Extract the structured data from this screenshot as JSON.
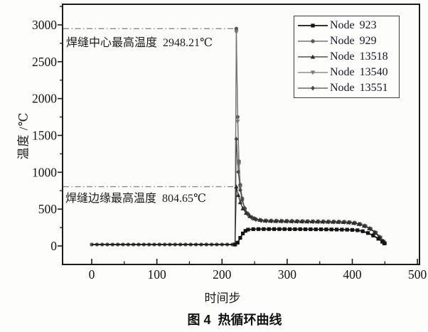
{
  "figure": {
    "caption": "图 4  热循环曲线",
    "xlabel": "时间步",
    "ylabel": "温度 /℃",
    "annotations": {
      "center": "焊缝中心最高温度  2948.21℃",
      "edge": "焊缝边缘最高温度  804.65℃"
    }
  },
  "chart_data": {
    "type": "line",
    "title": "图 4 热循环曲线",
    "xlabel": "时间步",
    "ylabel": "温度 /℃",
    "xlim": [
      -45,
      503
    ],
    "ylim": [
      -250,
      3280
    ],
    "x_ticks": [
      0,
      100,
      200,
      300,
      400,
      500
    ],
    "y_ticks": [
      0,
      500,
      1000,
      1500,
      2000,
      2500,
      3000
    ],
    "x_minor_step": 50,
    "y_minor_step": 250,
    "grid": false,
    "legend_position": "top-right",
    "reference_lines": [
      {
        "value": 2948.21,
        "label": "焊缝中心最高温度 2948.21℃",
        "t_end": 226
      },
      {
        "value": 804.65,
        "label": "焊缝边缘最高温度 804.65℃",
        "t_end": 226
      }
    ],
    "flat_segment": {
      "t_start": 0,
      "t_end": 216,
      "step": 8,
      "value": 20
    },
    "series": [
      {
        "name": "Node 923",
        "marker": "square",
        "color": "#141414",
        "width": 1.8,
        "peak": 230,
        "flat_markers": false,
        "points": [
          [
            220,
            20
          ],
          [
            224,
            45
          ],
          [
            228,
            110
          ],
          [
            232,
            170
          ],
          [
            236,
            205
          ],
          [
            240,
            222
          ],
          [
            248,
            228
          ],
          [
            256,
            229
          ],
          [
            264,
            229
          ],
          [
            272,
            229
          ],
          [
            280,
            229
          ],
          [
            288,
            229
          ],
          [
            296,
            229
          ],
          [
            304,
            228
          ],
          [
            312,
            228
          ],
          [
            320,
            228
          ],
          [
            328,
            227
          ],
          [
            336,
            227
          ],
          [
            344,
            226
          ],
          [
            352,
            226
          ],
          [
            360,
            225
          ],
          [
            368,
            224
          ],
          [
            376,
            223
          ],
          [
            384,
            222
          ],
          [
            392,
            221
          ],
          [
            400,
            218
          ],
          [
            408,
            213
          ],
          [
            416,
            200
          ],
          [
            424,
            176
          ],
          [
            432,
            142
          ],
          [
            440,
            98
          ],
          [
            446,
            58
          ],
          [
            449,
            35
          ]
        ]
      },
      {
        "name": "Node 929",
        "marker": "circle",
        "color": "#585858",
        "width": 1.3,
        "peak": 2948.21,
        "flat_markers": true,
        "points": [
          [
            220,
            20
          ],
          [
            222,
            2948.21
          ],
          [
            224,
            1750
          ],
          [
            226,
            1150
          ],
          [
            228,
            830
          ],
          [
            231,
            645
          ],
          [
            235,
            505
          ],
          [
            240,
            428
          ],
          [
            246,
            382
          ],
          [
            252,
            360
          ],
          [
            260,
            346
          ],
          [
            268,
            342
          ],
          [
            276,
            340
          ],
          [
            284,
            339
          ],
          [
            292,
            338
          ],
          [
            300,
            337
          ],
          [
            308,
            336
          ],
          [
            316,
            335
          ],
          [
            324,
            334
          ],
          [
            332,
            333
          ],
          [
            340,
            332
          ],
          [
            348,
            331
          ],
          [
            356,
            330
          ],
          [
            364,
            329
          ],
          [
            372,
            328
          ],
          [
            380,
            327
          ],
          [
            388,
            325
          ],
          [
            396,
            321
          ],
          [
            404,
            311
          ],
          [
            412,
            295
          ],
          [
            420,
            270
          ],
          [
            428,
            232
          ],
          [
            436,
            180
          ],
          [
            443,
            115
          ],
          [
            448,
            60
          ],
          [
            450,
            40
          ]
        ]
      },
      {
        "name": "Node 13518",
        "marker": "triangle-up",
        "color": "#2e2e2e",
        "width": 1.3,
        "peak": 804.65,
        "flat_markers": false,
        "points": [
          [
            220,
            20
          ],
          [
            222,
            804.65
          ],
          [
            225,
            690
          ],
          [
            228,
            592
          ],
          [
            232,
            508
          ],
          [
            237,
            448
          ],
          [
            243,
            404
          ],
          [
            250,
            374
          ],
          [
            258,
            354
          ],
          [
            266,
            344
          ],
          [
            274,
            341
          ],
          [
            282,
            339
          ],
          [
            290,
            338
          ],
          [
            298,
            337
          ],
          [
            306,
            336
          ],
          [
            314,
            335
          ],
          [
            322,
            334
          ],
          [
            330,
            333
          ],
          [
            338,
            332
          ],
          [
            346,
            331
          ],
          [
            354,
            330
          ],
          [
            362,
            329
          ],
          [
            370,
            328
          ],
          [
            378,
            326
          ],
          [
            386,
            324
          ],
          [
            394,
            320
          ],
          [
            402,
            312
          ],
          [
            410,
            298
          ],
          [
            418,
            274
          ],
          [
            426,
            238
          ],
          [
            434,
            188
          ],
          [
            441,
            125
          ],
          [
            447,
            68
          ],
          [
            450,
            42
          ]
        ]
      },
      {
        "name": "Node 13540",
        "marker": "triangle-down",
        "color": "#787878",
        "width": 1.2,
        "peak": 2901.0,
        "flat_markers": false,
        "points": [
          [
            220,
            20
          ],
          [
            222,
            2901
          ],
          [
            224,
            1690
          ],
          [
            226,
            1105
          ],
          [
            228,
            795
          ],
          [
            231,
            622
          ],
          [
            235,
            490
          ],
          [
            240,
            417
          ],
          [
            246,
            374
          ],
          [
            252,
            354
          ],
          [
            260,
            342
          ],
          [
            268,
            338
          ],
          [
            276,
            336
          ],
          [
            284,
            335
          ],
          [
            292,
            334
          ],
          [
            300,
            333
          ],
          [
            308,
            332
          ],
          [
            316,
            331
          ],
          [
            324,
            330
          ],
          [
            332,
            329
          ],
          [
            340,
            328
          ],
          [
            348,
            327
          ],
          [
            356,
            326
          ],
          [
            364,
            325
          ],
          [
            372,
            324
          ],
          [
            380,
            323
          ],
          [
            388,
            321
          ],
          [
            396,
            317
          ],
          [
            404,
            308
          ],
          [
            412,
            292
          ],
          [
            420,
            266
          ],
          [
            428,
            228
          ],
          [
            436,
            176
          ],
          [
            443,
            112
          ],
          [
            448,
            58
          ],
          [
            450,
            38
          ]
        ]
      },
      {
        "name": "Node 13551",
        "marker": "diamond",
        "color": "#4a4a4a",
        "width": 1.2,
        "peak": 1450,
        "flat_markers": false,
        "points": [
          [
            220,
            20
          ],
          [
            222,
            1450
          ],
          [
            225,
            1005
          ],
          [
            228,
            760
          ],
          [
            231,
            625
          ],
          [
            235,
            512
          ],
          [
            240,
            438
          ],
          [
            246,
            390
          ],
          [
            252,
            364
          ],
          [
            260,
            348
          ],
          [
            268,
            343
          ],
          [
            276,
            341
          ],
          [
            284,
            340
          ],
          [
            292,
            339
          ],
          [
            300,
            338
          ],
          [
            308,
            337
          ],
          [
            316,
            336
          ],
          [
            324,
            335
          ],
          [
            332,
            334
          ],
          [
            340,
            333
          ],
          [
            348,
            332
          ],
          [
            356,
            331
          ],
          [
            364,
            330
          ],
          [
            372,
            329
          ],
          [
            380,
            328
          ],
          [
            388,
            326
          ],
          [
            396,
            322
          ],
          [
            404,
            313
          ],
          [
            412,
            297
          ],
          [
            420,
            272
          ],
          [
            428,
            234
          ],
          [
            436,
            182
          ],
          [
            443,
            118
          ],
          [
            448,
            62
          ],
          [
            450,
            41
          ]
        ]
      }
    ],
    "colors": {
      "axis": "#1b1b1b",
      "reference_line": "#8a8a8a",
      "text": "#141414"
    }
  }
}
